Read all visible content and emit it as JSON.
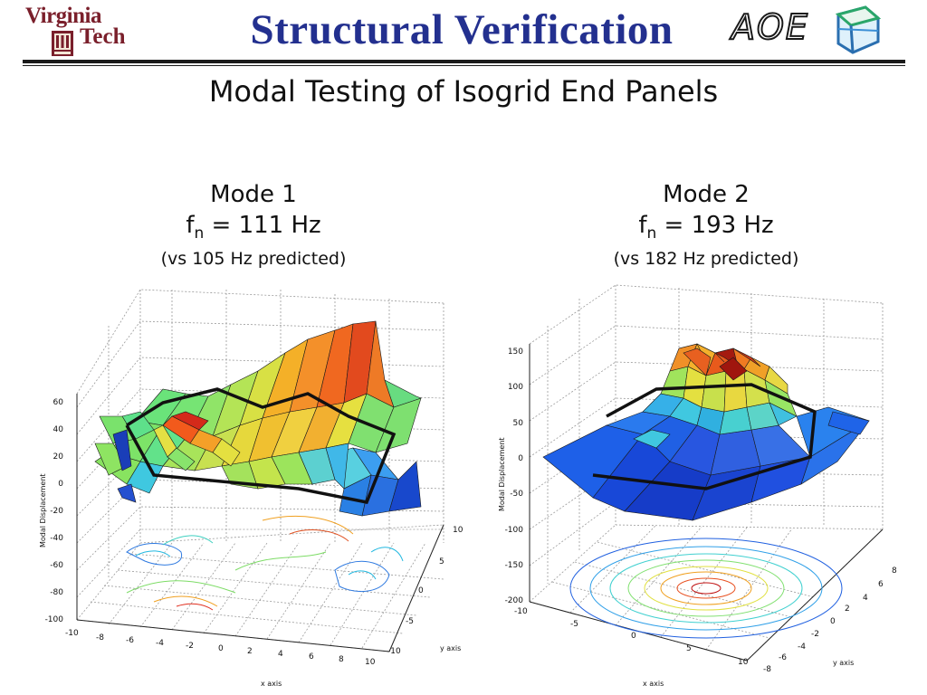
{
  "header": {
    "logo_left_line1": "Virginia",
    "logo_left_line2": "Tech",
    "title": "Structural Verification",
    "logo_right": "AOE"
  },
  "subtitle": "Modal Testing of Isogrid End Panels",
  "modes": [
    {
      "name": "Mode 1",
      "freq_prefix": "f",
      "freq_sub": "n",
      "freq_value": " = 111 Hz",
      "predicted": "(vs 105 Hz predicted)",
      "plot": {
        "zlabel": "Modal Displacement",
        "xlabel": "x axis",
        "ylabel": "y axis",
        "z_ticks": [
          "60",
          "40",
          "20",
          "0",
          "-20",
          "-40",
          "-60",
          "-80",
          "-100"
        ],
        "x_ticks": [
          "-10",
          "-8",
          "-6",
          "-4",
          "-2",
          "0",
          "2",
          "4",
          "6",
          "8",
          "10"
        ],
        "y_ticks": [
          "10",
          "5",
          "0",
          "-5",
          "-10"
        ]
      }
    },
    {
      "name": "Mode 2",
      "freq_prefix": "f",
      "freq_sub": "n",
      "freq_value": " = 193 Hz",
      "predicted": "(vs 182 Hz predicted)",
      "plot": {
        "zlabel": "Modal Displacement",
        "xlabel": "x axis",
        "ylabel": "y axis",
        "z_ticks": [
          "150",
          "100",
          "50",
          "0",
          "-50",
          "-100",
          "-150",
          "-200"
        ],
        "x_ticks": [
          "-10",
          "-5",
          "0",
          "5",
          "10"
        ],
        "y_ticks": [
          "8",
          "6",
          "4",
          "2",
          "0",
          "-2",
          "-4",
          "-6",
          "-8"
        ]
      }
    }
  ],
  "colors": {
    "title": "#23308f",
    "vt_maroon": "#7a1f2b"
  }
}
